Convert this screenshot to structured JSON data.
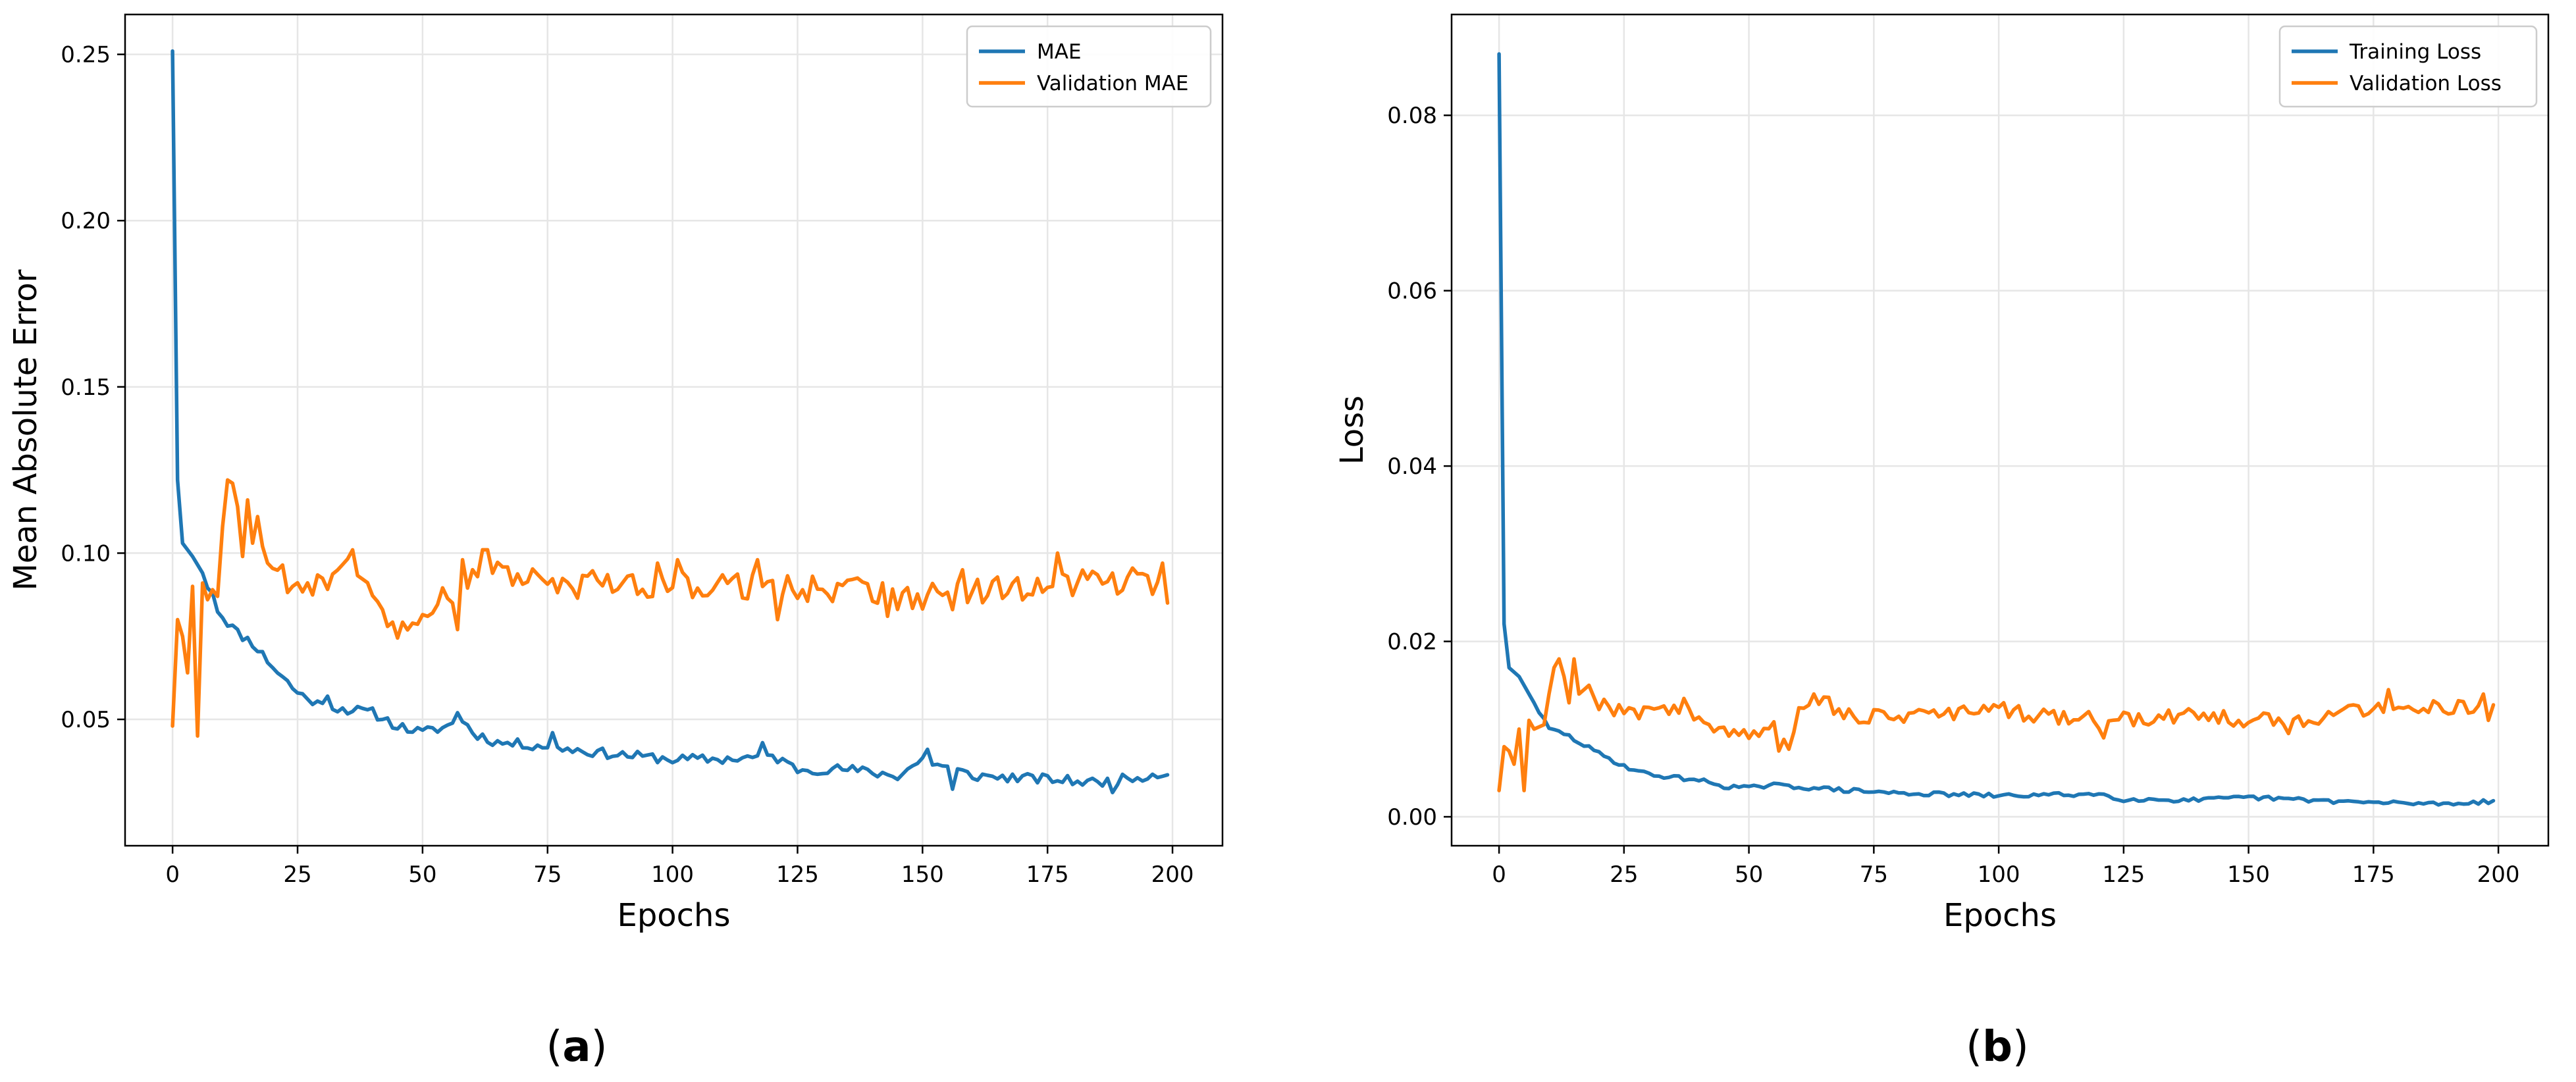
{
  "panels": [
    {
      "id": "a",
      "caption": "(a)",
      "caption_letter": "a",
      "chart_index": 0
    },
    {
      "id": "b",
      "caption": "(b)",
      "caption_letter": "b",
      "chart_index": 1
    }
  ],
  "colors": {
    "series_training": "#1f77b4",
    "series_validation": "#ff7f0e",
    "grid": "#e6e6e6",
    "axis": "#000000"
  },
  "chart_data": [
    {
      "type": "line",
      "title": "",
      "xlabel": "Epochs",
      "ylabel": "Mean Absolute Error",
      "xlim": [
        -9.5,
        210
      ],
      "ylim": [
        0.012,
        0.262
      ],
      "xticks": [
        0,
        25,
        50,
        75,
        100,
        125,
        150,
        175,
        200
      ],
      "xtick_labels": [
        "0",
        "25",
        "50",
        "75",
        "100",
        "125",
        "150",
        "175",
        "200"
      ],
      "yticks": [
        0.05,
        0.1,
        0.15,
        0.2,
        0.25
      ],
      "ytick_labels": [
        "0.05",
        "0.10",
        "0.15",
        "0.20",
        "0.25"
      ],
      "grid": true,
      "legend_position": "top-right",
      "series": [
        {
          "name": "MAE",
          "color": "#1f77b4",
          "keypoints": [
            [
              0,
              0.251
            ],
            [
              1,
              0.122
            ],
            [
              2,
              0.103
            ],
            [
              4,
              0.099
            ],
            [
              6,
              0.094
            ],
            [
              8,
              0.085
            ],
            [
              10,
              0.081
            ],
            [
              13,
              0.076
            ],
            [
              16,
              0.073
            ],
            [
              20,
              0.066
            ],
            [
              25,
              0.058
            ],
            [
              30,
              0.054
            ],
            [
              35,
              0.053
            ],
            [
              40,
              0.052
            ],
            [
              45,
              0.048
            ],
            [
              50,
              0.046
            ],
            [
              55,
              0.048
            ],
            [
              58,
              0.05
            ],
            [
              60,
              0.046
            ],
            [
              65,
              0.043
            ],
            [
              75,
              0.042
            ],
            [
              85,
              0.04
            ],
            [
              100,
              0.038
            ],
            [
              110,
              0.038
            ],
            [
              120,
              0.039
            ],
            [
              125,
              0.035
            ],
            [
              135,
              0.035
            ],
            [
              145,
              0.033
            ],
            [
              150,
              0.038
            ],
            [
              160,
              0.033
            ],
            [
              175,
              0.032
            ],
            [
              185,
              0.031
            ],
            [
              190,
              0.032
            ],
            [
              199,
              0.034
            ]
          ],
          "noise_amplitude": 0.0015,
          "spikes": [
            [
              8,
              0.088
            ],
            [
              31,
              0.057
            ],
            [
              57,
              0.052
            ],
            [
              76,
              0.046
            ],
            [
              118,
              0.043
            ],
            [
              151,
              0.041
            ],
            [
              156,
              0.029
            ],
            [
              188,
              0.028
            ]
          ]
        },
        {
          "name": "Validation MAE",
          "color": "#ff7f0e",
          "keypoints": [
            [
              0,
              0.048
            ],
            [
              1,
              0.08
            ],
            [
              2,
              0.075
            ],
            [
              3,
              0.064
            ],
            [
              4,
              0.09
            ],
            [
              5,
              0.045
            ],
            [
              6,
              0.091
            ],
            [
              7,
              0.086
            ],
            [
              8,
              0.089
            ],
            [
              9,
              0.087
            ],
            [
              10,
              0.108
            ],
            [
              11,
              0.122
            ],
            [
              12,
              0.121
            ],
            [
              13,
              0.114
            ],
            [
              14,
              0.099
            ],
            [
              15,
              0.116
            ],
            [
              16,
              0.103
            ],
            [
              17,
              0.111
            ],
            [
              18,
              0.102
            ],
            [
              20,
              0.096
            ],
            [
              25,
              0.09
            ],
            [
              30,
              0.093
            ],
            [
              35,
              0.095
            ],
            [
              38,
              0.088
            ],
            [
              42,
              0.085
            ],
            [
              44,
              0.077
            ],
            [
              48,
              0.081
            ],
            [
              55,
              0.086
            ],
            [
              60,
              0.093
            ],
            [
              63,
              0.099
            ],
            [
              70,
              0.091
            ],
            [
              80,
              0.09
            ],
            [
              100,
              0.091
            ],
            [
              120,
              0.09
            ],
            [
              140,
              0.089
            ],
            [
              150,
              0.086
            ],
            [
              160,
              0.088
            ],
            [
              175,
              0.091
            ],
            [
              190,
              0.092
            ],
            [
              199,
              0.092
            ]
          ],
          "noise_amplitude": 0.0045,
          "noise_start": 19,
          "spikes": [
            [
              36,
              0.101
            ],
            [
              57,
              0.077
            ],
            [
              58,
              0.098
            ],
            [
              62,
              0.101
            ],
            [
              97,
              0.097
            ],
            [
              101,
              0.098
            ],
            [
              117,
              0.098
            ],
            [
              121,
              0.08
            ],
            [
              143,
              0.081
            ],
            [
              158,
              0.095
            ],
            [
              177,
              0.1
            ],
            [
              198,
              0.097
            ],
            [
              199,
              0.085
            ]
          ]
        }
      ]
    },
    {
      "type": "line",
      "title": "",
      "xlabel": "Epochs",
      "ylabel": "Loss",
      "xlim": [
        -9.5,
        210
      ],
      "ylim": [
        -0.0033,
        0.0915
      ],
      "xticks": [
        0,
        25,
        50,
        75,
        100,
        125,
        150,
        175,
        200
      ],
      "xtick_labels": [
        "0",
        "25",
        "50",
        "75",
        "100",
        "125",
        "150",
        "175",
        "200"
      ],
      "yticks": [
        0.0,
        0.02,
        0.04,
        0.06,
        0.08
      ],
      "ytick_labels": [
        "0.00",
        "0.02",
        "0.04",
        "0.06",
        "0.08"
      ],
      "grid": true,
      "legend_position": "top-right",
      "series": [
        {
          "name": "Training Loss",
          "color": "#1f77b4",
          "keypoints": [
            [
              0,
              0.087
            ],
            [
              1,
              0.022
            ],
            [
              2,
              0.017
            ],
            [
              4,
              0.016
            ],
            [
              6,
              0.014
            ],
            [
              8,
              0.012
            ],
            [
              10,
              0.01
            ],
            [
              13,
              0.0095
            ],
            [
              16,
              0.0085
            ],
            [
              20,
              0.0072
            ],
            [
              25,
              0.0058
            ],
            [
              30,
              0.0048
            ],
            [
              35,
              0.0045
            ],
            [
              40,
              0.0042
            ],
            [
              45,
              0.0035
            ],
            [
              50,
              0.0033
            ],
            [
              55,
              0.0036
            ],
            [
              60,
              0.0034
            ],
            [
              70,
              0.003
            ],
            [
              80,
              0.0027
            ],
            [
              100,
              0.0024
            ],
            [
              120,
              0.0026
            ],
            [
              125,
              0.002
            ],
            [
              140,
              0.0019
            ],
            [
              150,
              0.0022
            ],
            [
              175,
              0.0016
            ],
            [
              190,
              0.0015
            ],
            [
              199,
              0.0018
            ]
          ],
          "noise_amplitude": 0.00025,
          "spikes": []
        },
        {
          "name": "Validation Loss",
          "color": "#ff7f0e",
          "keypoints": [
            [
              0,
              0.003
            ],
            [
              1,
              0.008
            ],
            [
              2,
              0.0075
            ],
            [
              3,
              0.006
            ],
            [
              4,
              0.01
            ],
            [
              5,
              0.003
            ],
            [
              6,
              0.011
            ],
            [
              7,
              0.01
            ],
            [
              9,
              0.0105
            ],
            [
              10,
              0.014
            ],
            [
              11,
              0.017
            ],
            [
              12,
              0.018
            ],
            [
              13,
              0.016
            ],
            [
              14,
              0.013
            ],
            [
              15,
              0.018
            ],
            [
              16,
              0.014
            ],
            [
              18,
              0.015
            ],
            [
              20,
              0.013
            ],
            [
              25,
              0.012
            ],
            [
              30,
              0.012
            ],
            [
              35,
              0.0125
            ],
            [
              40,
              0.011
            ],
            [
              45,
              0.0095
            ],
            [
              50,
              0.0095
            ],
            [
              55,
              0.01
            ],
            [
              58,
              0.0075
            ],
            [
              60,
              0.012
            ],
            [
              63,
              0.014
            ],
            [
              70,
              0.0115
            ],
            [
              80,
              0.0115
            ],
            [
              100,
              0.012
            ],
            [
              120,
              0.011
            ],
            [
              140,
              0.0115
            ],
            [
              150,
              0.011
            ],
            [
              160,
              0.011
            ],
            [
              175,
              0.0125
            ],
            [
              190,
              0.0125
            ],
            [
              199,
              0.012
            ]
          ],
          "noise_amplitude": 0.0009,
          "noise_start": 19,
          "spikes": [
            [
              37,
              0.0135
            ],
            [
              56,
              0.0075
            ],
            [
              63,
              0.014
            ],
            [
              101,
              0.013
            ],
            [
              121,
              0.009
            ],
            [
              158,
              0.0095
            ],
            [
              178,
              0.0145
            ],
            [
              197,
              0.014
            ],
            [
              198,
              0.011
            ]
          ]
        }
      ]
    }
  ]
}
